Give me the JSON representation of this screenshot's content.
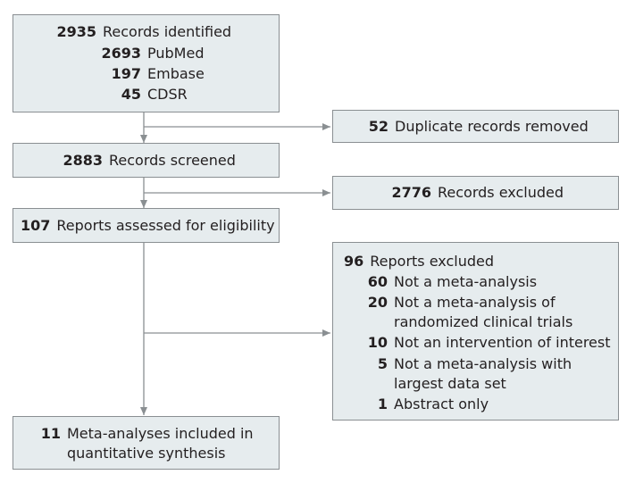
{
  "identified": {
    "total": "2935",
    "label": "Records identified",
    "sources": [
      {
        "count": "2693",
        "name": "PubMed"
      },
      {
        "count": "197",
        "name": "Embase"
      },
      {
        "count": "45",
        "name": "CDSR"
      }
    ]
  },
  "duplicates": {
    "count": "52",
    "label": "Duplicate records removed"
  },
  "screened": {
    "count": "2883",
    "label": "Records screened"
  },
  "records_excluded": {
    "count": "2776",
    "label": "Records excluded"
  },
  "assessed": {
    "count": "107",
    "label": "Reports assessed for eligibility"
  },
  "reports_excluded": {
    "count": "96",
    "label": "Reports excluded",
    "reasons": [
      {
        "count": "60",
        "line1": "Not a meta-analysis",
        "line2": ""
      },
      {
        "count": "20",
        "line1": "Not a meta-analysis of",
        "line2": "randomized clinical trials"
      },
      {
        "count": "10",
        "line1": "Not an intervention of interest",
        "line2": ""
      },
      {
        "count": "5",
        "line1": "Not a meta-analysis with",
        "line2": "largest data set"
      },
      {
        "count": "1",
        "line1": "Abstract only",
        "line2": ""
      }
    ]
  },
  "included": {
    "count": "11",
    "line1": "Meta-analyses included in",
    "line2": "quantitative synthesis"
  },
  "colors": {
    "box_fill": "#e6ecee",
    "box_border": "#8a8f92",
    "arrow": "#8a8f92",
    "text": "#231f20"
  }
}
